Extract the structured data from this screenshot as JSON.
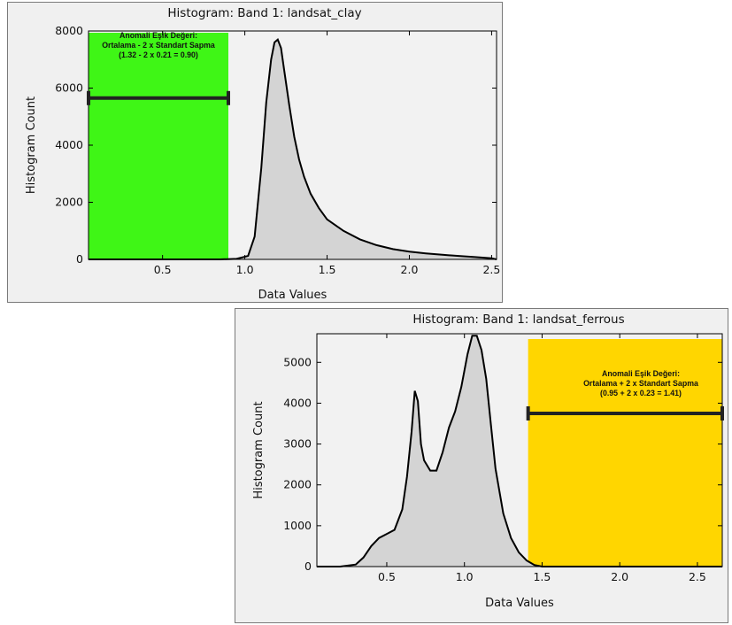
{
  "chart_data": [
    {
      "type": "area",
      "title": "Histogram: Band 1: landsat_clay",
      "xlabel": "Data Values",
      "ylabel": "Histogram Count",
      "xlim": [
        0.05,
        2.53
      ],
      "ylim": [
        0,
        8000
      ],
      "xticks": [
        0.5,
        1.0,
        1.5,
        2.0,
        2.5
      ],
      "xtick_labels": [
        "0.5",
        "1.0",
        "1.5",
        "2.0",
        "2.5"
      ],
      "yticks": [
        0,
        2000,
        4000,
        6000,
        8000
      ],
      "ytick_labels": [
        "0",
        "2000",
        "4000",
        "6000",
        "8000"
      ],
      "grid": false,
      "fill_color": "#d4d4d4",
      "line_color": "#000000",
      "series": [
        {
          "x": [
            0.05,
            0.3,
            0.6,
            0.85,
            0.95,
            1.02,
            1.06,
            1.1,
            1.13,
            1.16,
            1.18,
            1.2,
            1.22,
            1.24,
            1.27,
            1.3,
            1.33,
            1.36,
            1.4,
            1.45,
            1.5,
            1.6,
            1.7,
            1.8,
            1.9,
            2.0,
            2.1,
            2.2,
            2.3,
            2.4,
            2.5,
            2.53
          ],
          "y": [
            0,
            0,
            0,
            0,
            20,
            120,
            800,
            3200,
            5500,
            7000,
            7600,
            7700,
            7400,
            6600,
            5400,
            4300,
            3500,
            2900,
            2300,
            1800,
            1400,
            1000,
            700,
            500,
            360,
            270,
            210,
            160,
            120,
            80,
            40,
            0
          ]
        }
      ],
      "highlight": {
        "region": [
          0.05,
          0.9
        ],
        "color": "#3ff616",
        "threshold": 0.9,
        "marker_y": 5650,
        "annotation": [
          "Anomali Eşik Değeri:",
          "Ortalama - 2 x Standart Sapma",
          "(1.32 - 2 x 0.21 = 0.90)"
        ]
      }
    },
    {
      "type": "area",
      "title": "Histogram: Band 1: landsat_ferrous",
      "xlabel": "Data Values",
      "ylabel": "Histogram Count",
      "xlim": [
        0.05,
        2.66
      ],
      "ylim": [
        0,
        5700
      ],
      "xticks": [
        0.5,
        1.0,
        1.5,
        2.0,
        2.5
      ],
      "xtick_labels": [
        "0.5",
        "1.0",
        "1.5",
        "2.0",
        "2.5"
      ],
      "yticks": [
        0,
        1000,
        2000,
        3000,
        4000,
        5000
      ],
      "ytick_labels": [
        "0",
        "1000",
        "2000",
        "3000",
        "4000",
        "5000"
      ],
      "grid": false,
      "fill_color": "#d4d4d4",
      "line_color": "#000000",
      "series": [
        {
          "x": [
            0.05,
            0.2,
            0.3,
            0.35,
            0.4,
            0.45,
            0.5,
            0.55,
            0.6,
            0.63,
            0.66,
            0.68,
            0.7,
            0.72,
            0.74,
            0.78,
            0.82,
            0.86,
            0.9,
            0.94,
            0.98,
            1.02,
            1.05,
            1.08,
            1.11,
            1.14,
            1.17,
            1.2,
            1.25,
            1.3,
            1.35,
            1.4,
            1.45,
            1.5,
            1.6,
            2.0,
            2.66
          ],
          "y": [
            0,
            0,
            50,
            220,
            500,
            700,
            800,
            900,
            1400,
            2200,
            3300,
            4300,
            4050,
            3000,
            2600,
            2350,
            2350,
            2800,
            3400,
            3800,
            4400,
            5200,
            5650,
            5650,
            5300,
            4600,
            3500,
            2400,
            1300,
            700,
            350,
            150,
            40,
            0,
            0,
            0,
            0
          ]
        }
      ],
      "highlight": {
        "region": [
          1.41,
          2.66
        ],
        "color": "#ffd600",
        "threshold": 1.41,
        "marker_y": 3750,
        "annotation": [
          "Anomali Eşik Değeri:",
          "Ortalama + 2 x Standart Sapma",
          "(0.95 + 2 x 0.23 = 1.41)"
        ]
      }
    }
  ]
}
